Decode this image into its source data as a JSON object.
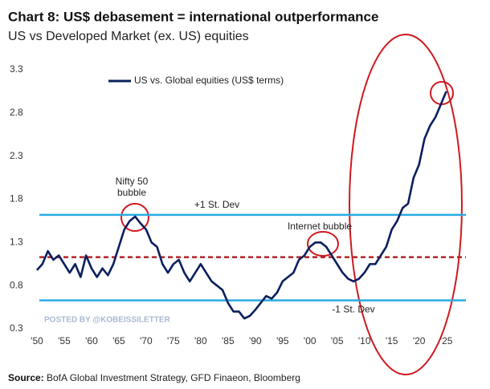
{
  "chart_data": {
    "type": "line",
    "title": "Chart 8: US$ debasement = international outperformance",
    "subtitle": "US vs Developed Market (ex. US) equities",
    "source_label": "Source:",
    "source": "BofA Global Investment Strategy, GFD Finaeon,  Bloomberg",
    "watermark": "POSTED BY @KOBEISSILETTER",
    "legend": "upper left",
    "grid": false,
    "series": [
      {
        "name": "US vs. Global equities (US$ terms)",
        "color": "#0b1f5e",
        "x": [
          1950,
          1951,
          1952,
          1953,
          1954,
          1955,
          1956,
          1957,
          1958,
          1959,
          1960,
          1961,
          1962,
          1963,
          1964,
          1965,
          1966,
          1967,
          1968,
          1969,
          1970,
          1971,
          1972,
          1973,
          1974,
          1975,
          1976,
          1977,
          1978,
          1979,
          1980,
          1981,
          1982,
          1983,
          1984,
          1985,
          1986,
          1987,
          1988,
          1989,
          1990,
          1991,
          1992,
          1993,
          1994,
          1995,
          1996,
          1997,
          1998,
          1999,
          2000,
          2001,
          2002,
          2003,
          2004,
          2005,
          2006,
          2007,
          2008,
          2009,
          2010,
          2011,
          2012,
          2013,
          2014,
          2015,
          2016,
          2017,
          2018,
          2019,
          2020,
          2021,
          2022,
          2023,
          2024,
          2025
        ],
        "values": [
          0.98,
          1.05,
          1.2,
          1.1,
          1.15,
          1.05,
          0.95,
          1.05,
          0.9,
          1.15,
          1.0,
          0.9,
          1.0,
          0.92,
          1.05,
          1.25,
          1.45,
          1.55,
          1.6,
          1.52,
          1.45,
          1.3,
          1.25,
          1.05,
          0.95,
          1.05,
          1.1,
          0.95,
          0.85,
          0.95,
          1.05,
          0.95,
          0.85,
          0.8,
          0.75,
          0.6,
          0.5,
          0.5,
          0.42,
          0.45,
          0.52,
          0.6,
          0.68,
          0.65,
          0.72,
          0.85,
          0.9,
          0.95,
          1.1,
          1.15,
          1.25,
          1.3,
          1.3,
          1.25,
          1.15,
          1.05,
          0.95,
          0.88,
          0.85,
          0.88,
          0.95,
          1.05,
          1.05,
          1.15,
          1.25,
          1.45,
          1.55,
          1.7,
          1.75,
          2.05,
          2.2,
          2.5,
          2.65,
          2.75,
          2.9,
          3.05
        ]
      }
    ],
    "reference_lines": [
      {
        "label": "+1 St. Dev",
        "value": 1.62,
        "color": "#29abe2",
        "style": "solid"
      },
      {
        "value": 1.13,
        "color": "#b0242a",
        "style": "dashed"
      },
      {
        "label": "-1 St. Dev",
        "value": 0.63,
        "color": "#29abe2",
        "style": "solid"
      }
    ],
    "annotations": [
      "Nifty 50 bubble",
      "Internet bubble"
    ],
    "xlim": [
      1950,
      2028
    ],
    "ylim": [
      0.3,
      3.3
    ],
    "xticks": [
      {
        "value": 1950,
        "label": "'50"
      },
      {
        "value": 1955,
        "label": "'55"
      },
      {
        "value": 1960,
        "label": "'60"
      },
      {
        "value": 1965,
        "label": "'65"
      },
      {
        "value": 1970,
        "label": "'70"
      },
      {
        "value": 1975,
        "label": "'75"
      },
      {
        "value": 1980,
        "label": "'80"
      },
      {
        "value": 1985,
        "label": "'85"
      },
      {
        "value": 1990,
        "label": "'90"
      },
      {
        "value": 1995,
        "label": "'95"
      },
      {
        "value": 2000,
        "label": "'00"
      },
      {
        "value": 2005,
        "label": "'05"
      },
      {
        "value": 2010,
        "label": "'10"
      },
      {
        "value": 2015,
        "label": "'15"
      },
      {
        "value": 2020,
        "label": "'20"
      },
      {
        "value": 2025,
        "label": "'25"
      }
    ],
    "yticks": [
      0.3,
      0.8,
      1.3,
      1.8,
      2.3,
      2.8,
      3.3
    ]
  }
}
